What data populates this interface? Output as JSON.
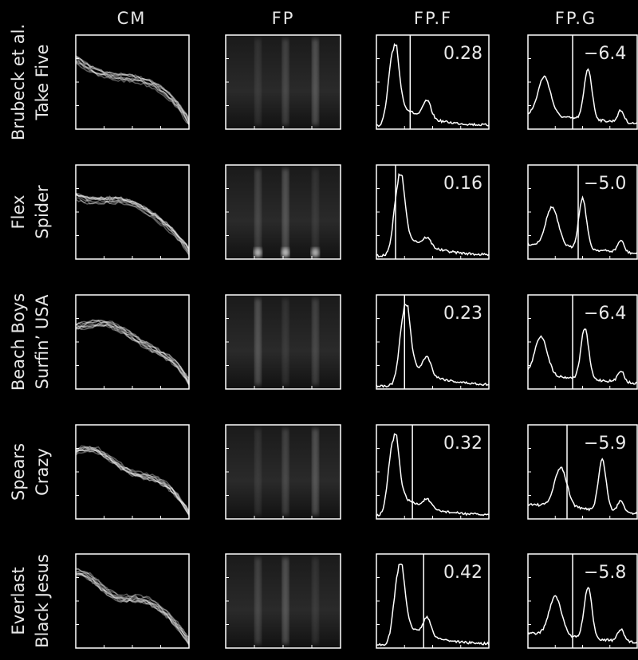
{
  "figure": {
    "columns": [
      "CM",
      "FP",
      "FP.F",
      "FP.G"
    ],
    "rows": [
      {
        "label": [
          "Brubeck et al.",
          "Take Five"
        ],
        "fpf": "0.28",
        "fpg": "−6.4"
      },
      {
        "label": [
          "Flex",
          "Spider"
        ],
        "fpf": "0.16",
        "fpg": "−5.0"
      },
      {
        "label": [
          "Beach Boys",
          "Surfin’ USA"
        ],
        "fpf": "0.23",
        "fpg": "−6.4"
      },
      {
        "label": [
          "Spears",
          "Crazy"
        ],
        "fpf": "0.32",
        "fpg": "−5.9"
      },
      {
        "label": [
          "Everlast",
          "Black Jesus"
        ],
        "fpf": "0.42",
        "fpg": "−5.8"
      }
    ]
  }
}
